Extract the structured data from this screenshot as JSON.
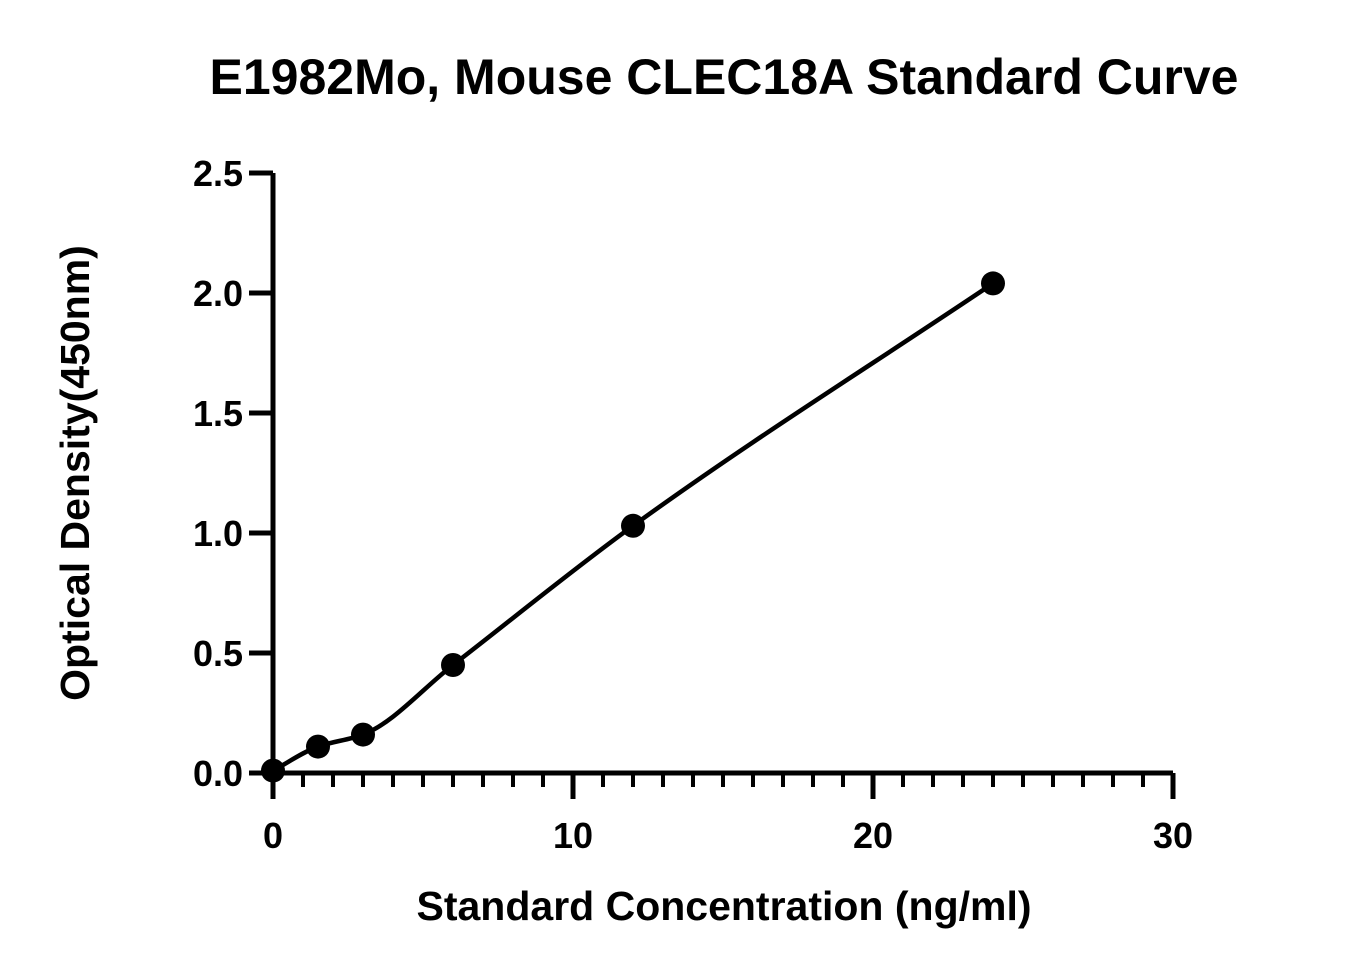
{
  "chart_data": {
    "type": "scatter",
    "title": "E1982Mo, Mouse CLEC18A Standard Curve",
    "xlabel": "Standard Concentration (ng/ml)",
    "ylabel": "Optical Density(450nm)",
    "xlim": [
      0,
      30
    ],
    "ylim": [
      0,
      2.5
    ],
    "x_ticks": [
      "0",
      "10",
      "20",
      "30"
    ],
    "y_ticks": [
      "0.0",
      "0.5",
      "1.0",
      "1.5",
      "2.0",
      "2.5"
    ],
    "grid": false,
    "legend": "none",
    "fit_curve": true,
    "series": [
      {
        "x": [
          0,
          1.5,
          3,
          6,
          12,
          24
        ],
        "y": [
          0.01,
          0.11,
          0.16,
          0.45,
          1.03,
          2.04
        ]
      }
    ],
    "colors": {
      "line": "#000000",
      "marker": "#000000"
    }
  }
}
